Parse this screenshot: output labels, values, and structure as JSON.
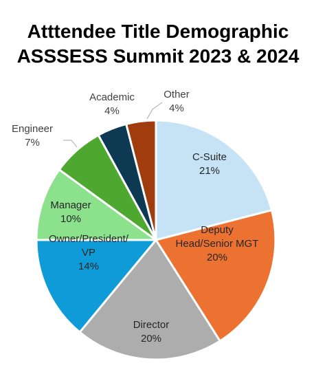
{
  "chart_data": {
    "type": "pie",
    "title_lines": [
      "Atttendee Title Demographic",
      "ASSSESS Summit 2023 & 2024"
    ],
    "slices": [
      {
        "label_lines": [
          "C-Suite"
        ],
        "value": 21,
        "value_label": "21%",
        "color": "#C5E3F5",
        "label_placement": "inside"
      },
      {
        "label_lines": [
          "Deputy",
          "Head/Senior MGT"
        ],
        "value": 20,
        "value_label": "20%",
        "color": "#EC7231",
        "label_placement": "inside"
      },
      {
        "label_lines": [
          "Director"
        ],
        "value": 20,
        "value_label": "20%",
        "color": "#ADADAD",
        "label_placement": "inside"
      },
      {
        "label_lines": [
          "Owner/President/",
          "VP"
        ],
        "value": 14,
        "value_label": "14%",
        "color": "#0E9BD8",
        "label_placement": "inside"
      },
      {
        "label_lines": [
          "Manager"
        ],
        "value": 10,
        "value_label": "10%",
        "color": "#8CE18D",
        "label_placement": "inside"
      },
      {
        "label_lines": [
          "Engineer"
        ],
        "value": 7,
        "value_label": "7%",
        "color": "#4EA72E",
        "label_placement": "outside"
      },
      {
        "label_lines": [
          "Academic"
        ],
        "value": 4,
        "value_label": "4%",
        "color": "#0D3A52",
        "label_placement": "outside"
      },
      {
        "label_lines": [
          "Other"
        ],
        "value": 4,
        "value_label": "4%",
        "color": "#A03C0D",
        "label_placement": "outside"
      }
    ],
    "start_angle": "12 o'clock",
    "direction": "clockwise",
    "legend": "none"
  }
}
